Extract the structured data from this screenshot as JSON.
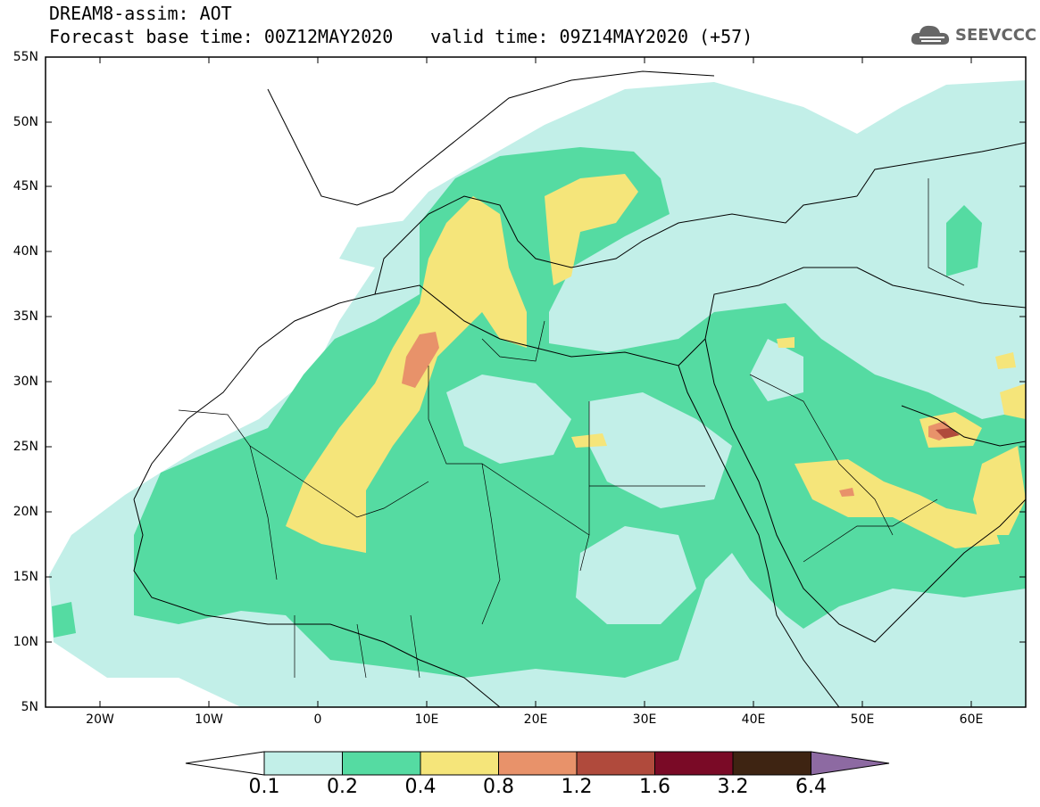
{
  "header": {
    "title": "DREAM8-assim: AOT",
    "base_time": "Forecast base time: 00Z12MAY2020",
    "valid_time": "valid time: 09Z14MAY2020 (+57)",
    "logo_text": "SEEVCCC"
  },
  "axes": {
    "lat_labels": [
      "55N",
      "50N",
      "45N",
      "40N",
      "35N",
      "30N",
      "25N",
      "20N",
      "15N",
      "10N",
      "5N"
    ],
    "lon_labels": [
      "20W",
      "10W",
      "0",
      "10E",
      "20E",
      "30E",
      "40E",
      "50E",
      "60E"
    ]
  },
  "colorbar": {
    "labels": [
      "0.1",
      "0.2",
      "0.4",
      "0.8",
      "1.2",
      "1.6",
      "3.2",
      "6.4"
    ],
    "colors": [
      "#c2efe8",
      "#55dba2",
      "#f5e57a",
      "#e8926a",
      "#b04a3c",
      "#7a0a26",
      "#3e2412",
      "#8d6aa2"
    ]
  },
  "map_data": {
    "variable": "Aerosol Optical Thickness",
    "lat_range": [
      5,
      55
    ],
    "lon_range": [
      -25,
      65
    ],
    "levels": [
      0.1,
      0.2,
      0.4,
      0.8,
      1.2,
      1.6,
      3.2,
      6.4
    ]
  }
}
